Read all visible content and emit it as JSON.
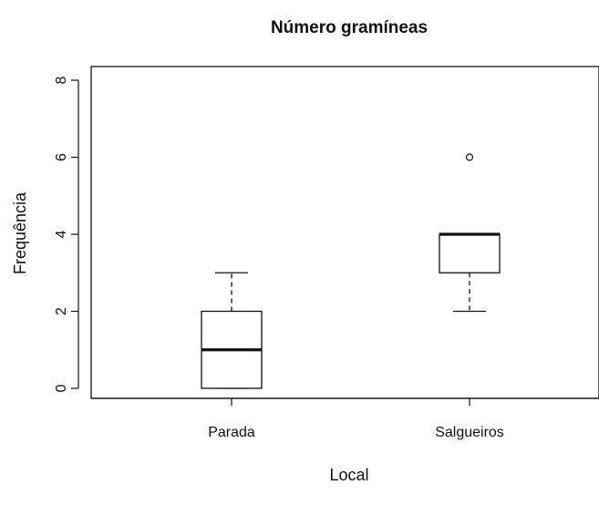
{
  "chart_data": {
    "type": "boxplot",
    "title": "Número gramíneas",
    "xlabel": "Local",
    "ylabel": "Frequência",
    "ylim": [
      0,
      8
    ],
    "yticks": [
      "0",
      "2",
      "4",
      "6",
      "8"
    ],
    "categories": [
      "Parada",
      "Salgueiros"
    ],
    "boxes": [
      {
        "category": "Parada",
        "whisker_low": 0,
        "q1": 0,
        "median": 1,
        "q3": 2,
        "whisker_high": 3,
        "outliers": []
      },
      {
        "category": "Salgueiros",
        "whisker_low": 2,
        "q1": 3,
        "median": 4,
        "q3": 4,
        "whisker_high": 4,
        "outliers": [
          6
        ]
      }
    ],
    "grid": false,
    "colors": {
      "box_fill": "#ffffff",
      "stroke": "#111111"
    }
  }
}
